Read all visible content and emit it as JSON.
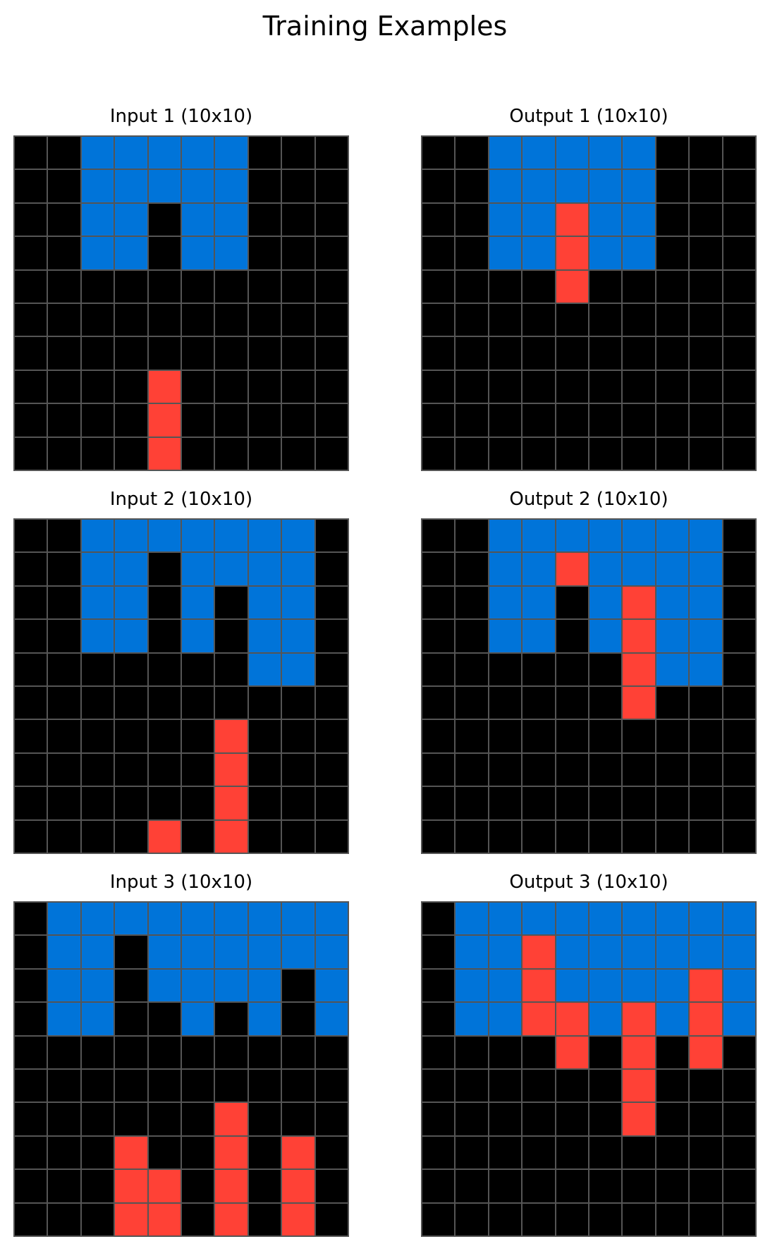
{
  "title": "Training Examples",
  "palette": {
    "0": "#000000",
    "1": "#0074D9",
    "2": "#FF4136",
    "grid_line": "#555555"
  },
  "examples": [
    {
      "input": {
        "label": "Input 1 (10x10)",
        "cells": [
          [
            0,
            0,
            1,
            1,
            1,
            1,
            1,
            0,
            0,
            0
          ],
          [
            0,
            0,
            1,
            1,
            1,
            1,
            1,
            0,
            0,
            0
          ],
          [
            0,
            0,
            1,
            1,
            0,
            1,
            1,
            0,
            0,
            0
          ],
          [
            0,
            0,
            1,
            1,
            0,
            1,
            1,
            0,
            0,
            0
          ],
          [
            0,
            0,
            0,
            0,
            0,
            0,
            0,
            0,
            0,
            0
          ],
          [
            0,
            0,
            0,
            0,
            0,
            0,
            0,
            0,
            0,
            0
          ],
          [
            0,
            0,
            0,
            0,
            0,
            0,
            0,
            0,
            0,
            0
          ],
          [
            0,
            0,
            0,
            0,
            2,
            0,
            0,
            0,
            0,
            0
          ],
          [
            0,
            0,
            0,
            0,
            2,
            0,
            0,
            0,
            0,
            0
          ],
          [
            0,
            0,
            0,
            0,
            2,
            0,
            0,
            0,
            0,
            0
          ]
        ]
      },
      "output": {
        "label": "Output 1 (10x10)",
        "cells": [
          [
            0,
            0,
            1,
            1,
            1,
            1,
            1,
            0,
            0,
            0
          ],
          [
            0,
            0,
            1,
            1,
            1,
            1,
            1,
            0,
            0,
            0
          ],
          [
            0,
            0,
            1,
            1,
            2,
            1,
            1,
            0,
            0,
            0
          ],
          [
            0,
            0,
            1,
            1,
            2,
            1,
            1,
            0,
            0,
            0
          ],
          [
            0,
            0,
            0,
            0,
            2,
            0,
            0,
            0,
            0,
            0
          ],
          [
            0,
            0,
            0,
            0,
            0,
            0,
            0,
            0,
            0,
            0
          ],
          [
            0,
            0,
            0,
            0,
            0,
            0,
            0,
            0,
            0,
            0
          ],
          [
            0,
            0,
            0,
            0,
            0,
            0,
            0,
            0,
            0,
            0
          ],
          [
            0,
            0,
            0,
            0,
            0,
            0,
            0,
            0,
            0,
            0
          ],
          [
            0,
            0,
            0,
            0,
            0,
            0,
            0,
            0,
            0,
            0
          ]
        ]
      }
    },
    {
      "input": {
        "label": "Input 2 (10x10)",
        "cells": [
          [
            0,
            0,
            1,
            1,
            1,
            1,
            1,
            1,
            1,
            0
          ],
          [
            0,
            0,
            1,
            1,
            0,
            1,
            1,
            1,
            1,
            0
          ],
          [
            0,
            0,
            1,
            1,
            0,
            1,
            0,
            1,
            1,
            0
          ],
          [
            0,
            0,
            1,
            1,
            0,
            1,
            0,
            1,
            1,
            0
          ],
          [
            0,
            0,
            0,
            0,
            0,
            0,
            0,
            1,
            1,
            0
          ],
          [
            0,
            0,
            0,
            0,
            0,
            0,
            0,
            0,
            0,
            0
          ],
          [
            0,
            0,
            0,
            0,
            0,
            0,
            2,
            0,
            0,
            0
          ],
          [
            0,
            0,
            0,
            0,
            0,
            0,
            2,
            0,
            0,
            0
          ],
          [
            0,
            0,
            0,
            0,
            0,
            0,
            2,
            0,
            0,
            0
          ],
          [
            0,
            0,
            0,
            0,
            2,
            0,
            2,
            0,
            0,
            0
          ]
        ]
      },
      "output": {
        "label": "Output 2 (10x10)",
        "cells": [
          [
            0,
            0,
            1,
            1,
            1,
            1,
            1,
            1,
            1,
            0
          ],
          [
            0,
            0,
            1,
            1,
            2,
            1,
            1,
            1,
            1,
            0
          ],
          [
            0,
            0,
            1,
            1,
            0,
            1,
            2,
            1,
            1,
            0
          ],
          [
            0,
            0,
            1,
            1,
            0,
            1,
            2,
            1,
            1,
            0
          ],
          [
            0,
            0,
            0,
            0,
            0,
            0,
            2,
            1,
            1,
            0
          ],
          [
            0,
            0,
            0,
            0,
            0,
            0,
            2,
            0,
            0,
            0
          ],
          [
            0,
            0,
            0,
            0,
            0,
            0,
            0,
            0,
            0,
            0
          ],
          [
            0,
            0,
            0,
            0,
            0,
            0,
            0,
            0,
            0,
            0
          ],
          [
            0,
            0,
            0,
            0,
            0,
            0,
            0,
            0,
            0,
            0
          ],
          [
            0,
            0,
            0,
            0,
            0,
            0,
            0,
            0,
            0,
            0
          ]
        ]
      }
    },
    {
      "input": {
        "label": "Input 3 (10x10)",
        "cells": [
          [
            0,
            1,
            1,
            1,
            1,
            1,
            1,
            1,
            1,
            1
          ],
          [
            0,
            1,
            1,
            0,
            1,
            1,
            1,
            1,
            1,
            1
          ],
          [
            0,
            1,
            1,
            0,
            1,
            1,
            1,
            1,
            0,
            1
          ],
          [
            0,
            1,
            1,
            0,
            0,
            1,
            0,
            1,
            0,
            1
          ],
          [
            0,
            0,
            0,
            0,
            0,
            0,
            0,
            0,
            0,
            0
          ],
          [
            0,
            0,
            0,
            0,
            0,
            0,
            0,
            0,
            0,
            0
          ],
          [
            0,
            0,
            0,
            0,
            0,
            0,
            2,
            0,
            0,
            0
          ],
          [
            0,
            0,
            0,
            2,
            0,
            0,
            2,
            0,
            2,
            0
          ],
          [
            0,
            0,
            0,
            2,
            2,
            0,
            2,
            0,
            2,
            0
          ],
          [
            0,
            0,
            0,
            2,
            2,
            0,
            2,
            0,
            2,
            0
          ]
        ]
      },
      "output": {
        "label": "Output 3 (10x10)",
        "cells": [
          [
            0,
            1,
            1,
            1,
            1,
            1,
            1,
            1,
            1,
            1
          ],
          [
            0,
            1,
            1,
            2,
            1,
            1,
            1,
            1,
            1,
            1
          ],
          [
            0,
            1,
            1,
            2,
            1,
            1,
            1,
            1,
            2,
            1
          ],
          [
            0,
            1,
            1,
            2,
            2,
            1,
            2,
            1,
            2,
            1
          ],
          [
            0,
            0,
            0,
            0,
            2,
            0,
            2,
            0,
            2,
            0
          ],
          [
            0,
            0,
            0,
            0,
            0,
            0,
            2,
            0,
            0,
            0
          ],
          [
            0,
            0,
            0,
            0,
            0,
            0,
            2,
            0,
            0,
            0
          ],
          [
            0,
            0,
            0,
            0,
            0,
            0,
            0,
            0,
            0,
            0
          ],
          [
            0,
            0,
            0,
            0,
            0,
            0,
            0,
            0,
            0,
            0
          ],
          [
            0,
            0,
            0,
            0,
            0,
            0,
            0,
            0,
            0,
            0
          ]
        ]
      }
    }
  ]
}
